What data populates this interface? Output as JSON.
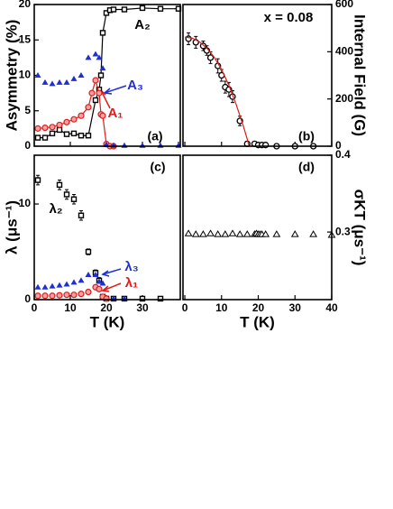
{
  "chart_data": [
    {
      "type": "scatter",
      "label": "(a)",
      "ylabel": "Asymmetry (%)",
      "yaxis_side": "left",
      "xlim": [
        0,
        40.5
      ],
      "xticks": [
        0,
        10,
        20,
        30,
        40
      ],
      "xtick_labels": false,
      "ylim": [
        0,
        20
      ],
      "yticks": [
        0,
        5,
        10,
        15,
        20
      ],
      "annotations": [
        {
          "text": "A₂",
          "color": "#000000"
        },
        {
          "text": "A₃",
          "color": "#1f2fd6"
        },
        {
          "text": "A₁",
          "color": "#e01b1b"
        }
      ],
      "series": [
        {
          "color": "#000000",
          "marker": "square",
          "line": true,
          "x": [
            1,
            3,
            5,
            7,
            9,
            11,
            13,
            15,
            17,
            18,
            18.5,
            19,
            20,
            21,
            22,
            25,
            30,
            35,
            40
          ],
          "values": [
            1.2,
            1.2,
            1.8,
            2.3,
            1.7,
            1.8,
            1.5,
            1.5,
            6.5,
            8,
            10,
            16,
            18.8,
            19.2,
            19.3,
            19.3,
            19.5,
            19.4,
            19.4
          ]
        },
        {
          "color": "#e01b1b",
          "marker": "circle",
          "line": true,
          "x": [
            1,
            3,
            5,
            7,
            9,
            11,
            13,
            15,
            16,
            17,
            18,
            18.5,
            19,
            20,
            21,
            22
          ],
          "values": [
            2.5,
            2.6,
            2.7,
            3.0,
            3.4,
            3.8,
            4.3,
            5.5,
            7.5,
            9.3,
            7.5,
            4.5,
            4.3,
            0.3,
            0,
            0
          ]
        },
        {
          "color": "#1f2fd6",
          "marker": "triangle",
          "line": false,
          "x": [
            1,
            3,
            5,
            7,
            9,
            11,
            13,
            15,
            17,
            18,
            19,
            20,
            22,
            25,
            30,
            35,
            40
          ],
          "values": [
            10,
            9,
            8.8,
            9,
            9,
            9.5,
            10,
            12.5,
            13,
            12.5,
            11,
            0.2,
            0.1,
            0.1,
            0.1,
            0.1,
            0.1
          ]
        }
      ]
    },
    {
      "type": "scatter",
      "label": "(b)",
      "ylabel": "Internal Field (G)",
      "yaxis_side": "right",
      "xlim": [
        -0.5,
        40
      ],
      "xticks": [
        0,
        10,
        20,
        30,
        40
      ],
      "xtick_labels": false,
      "ylim": [
        0,
        600
      ],
      "yticks": [
        0,
        200,
        400,
        600
      ],
      "annotations": [
        {
          "text": "x = 0.08",
          "color": "#000000"
        }
      ],
      "series": [
        {
          "color": "#000000",
          "marker": "circle-open",
          "line": false,
          "x": [
            1,
            3,
            5,
            6,
            7,
            9,
            10,
            11,
            12,
            13,
            15,
            17,
            19,
            20,
            21,
            22,
            25,
            30,
            35
          ],
          "values": [
            455,
            440,
            425,
            405,
            375,
            340,
            300,
            250,
            240,
            210,
            107,
            10,
            10,
            5,
            5,
            5,
            0,
            0,
            0
          ],
          "errors": [
            25,
            25,
            20,
            20,
            25,
            30,
            25,
            25,
            30,
            25,
            20,
            10,
            10,
            5,
            5,
            5,
            5,
            5,
            5
          ]
        },
        {
          "color": "#e01b1b",
          "marker": "none",
          "line": true,
          "x": [
            0,
            2,
            4,
            6,
            8,
            10,
            12,
            14,
            16,
            17,
            17.5
          ],
          "values": [
            462,
            458,
            442,
            415,
            377,
            325,
            258,
            176,
            82,
            30,
            0
          ]
        }
      ]
    },
    {
      "type": "scatter",
      "label": "(c)",
      "ylabel": "λ (μs⁻¹)",
      "xlabel": "T (K)",
      "yaxis_side": "left",
      "xlim": [
        0,
        40.5
      ],
      "xticks": [
        0,
        10,
        20,
        30
      ],
      "xtick_labels": true,
      "ylim": [
        0,
        15.1
      ],
      "yticks": [
        0,
        10
      ],
      "annotations": [
        {
          "text": "λ₂",
          "color": "#000000"
        },
        {
          "text": "λ₃",
          "color": "#1f2fd6"
        },
        {
          "text": "λ₁",
          "color": "#e01b1b"
        }
      ],
      "series": [
        {
          "color": "#000000",
          "marker": "square",
          "line": false,
          "x": [
            1,
            7,
            9,
            11,
            13,
            15,
            17,
            18,
            19,
            20,
            22,
            25,
            30,
            35
          ],
          "values": [
            12.5,
            12,
            11,
            10.5,
            8.8,
            5,
            2.8,
            2,
            0.3,
            0.1,
            0.1,
            0.1,
            0.1,
            0.1
          ],
          "errors": [
            0.5,
            0.5,
            0.5,
            0.5,
            0.5,
            0.3,
            0.3,
            0.3,
            0.1,
            0.1,
            0.1,
            0.1,
            0.1,
            0.1
          ]
        },
        {
          "color": "#1f2fd6",
          "marker": "triangle",
          "line": false,
          "x": [
            1,
            3,
            5,
            7,
            9,
            11,
            13,
            15,
            17,
            18,
            19,
            20,
            22,
            25
          ],
          "values": [
            1.3,
            1.3,
            1.4,
            1.5,
            1.6,
            1.8,
            2.0,
            2.6,
            2.6,
            1.9,
            1.7,
            0.1,
            0.1,
            0.1
          ]
        },
        {
          "color": "#e01b1b",
          "marker": "circle",
          "line": false,
          "x": [
            1,
            3,
            5,
            7,
            9,
            11,
            13,
            15,
            17,
            18,
            19,
            20
          ],
          "values": [
            0.4,
            0.4,
            0.4,
            0.45,
            0.5,
            0.5,
            0.6,
            0.8,
            1.3,
            1.1,
            0.3,
            0.1
          ]
        }
      ]
    },
    {
      "type": "scatter",
      "label": "(d)",
      "ylabel": "σKT (μs⁻¹)",
      "xlabel": "T (K)",
      "yaxis_side": "right",
      "xlim": [
        -0.5,
        40
      ],
      "xticks": [
        0,
        10,
        20,
        30,
        40
      ],
      "xtick_labels": true,
      "ylim": [
        0.212,
        0.4
      ],
      "yticks": [
        0.3,
        0.4
      ],
      "annotations": [],
      "series": [
        {
          "color": "#000000",
          "marker": "triangle-open",
          "line": false,
          "x": [
            1,
            3,
            5,
            7,
            9,
            11,
            13,
            15,
            17,
            19,
            19.5,
            20,
            20.5,
            21,
            22,
            25,
            30,
            35,
            40
          ],
          "values": [
            0.298,
            0.297,
            0.297,
            0.298,
            0.297,
            0.297,
            0.298,
            0.297,
            0.297,
            0.297,
            0.298,
            0.297,
            0.297,
            0.297,
            0.297,
            0.297,
            0.297,
            0.297,
            0.296
          ]
        }
      ]
    }
  ]
}
